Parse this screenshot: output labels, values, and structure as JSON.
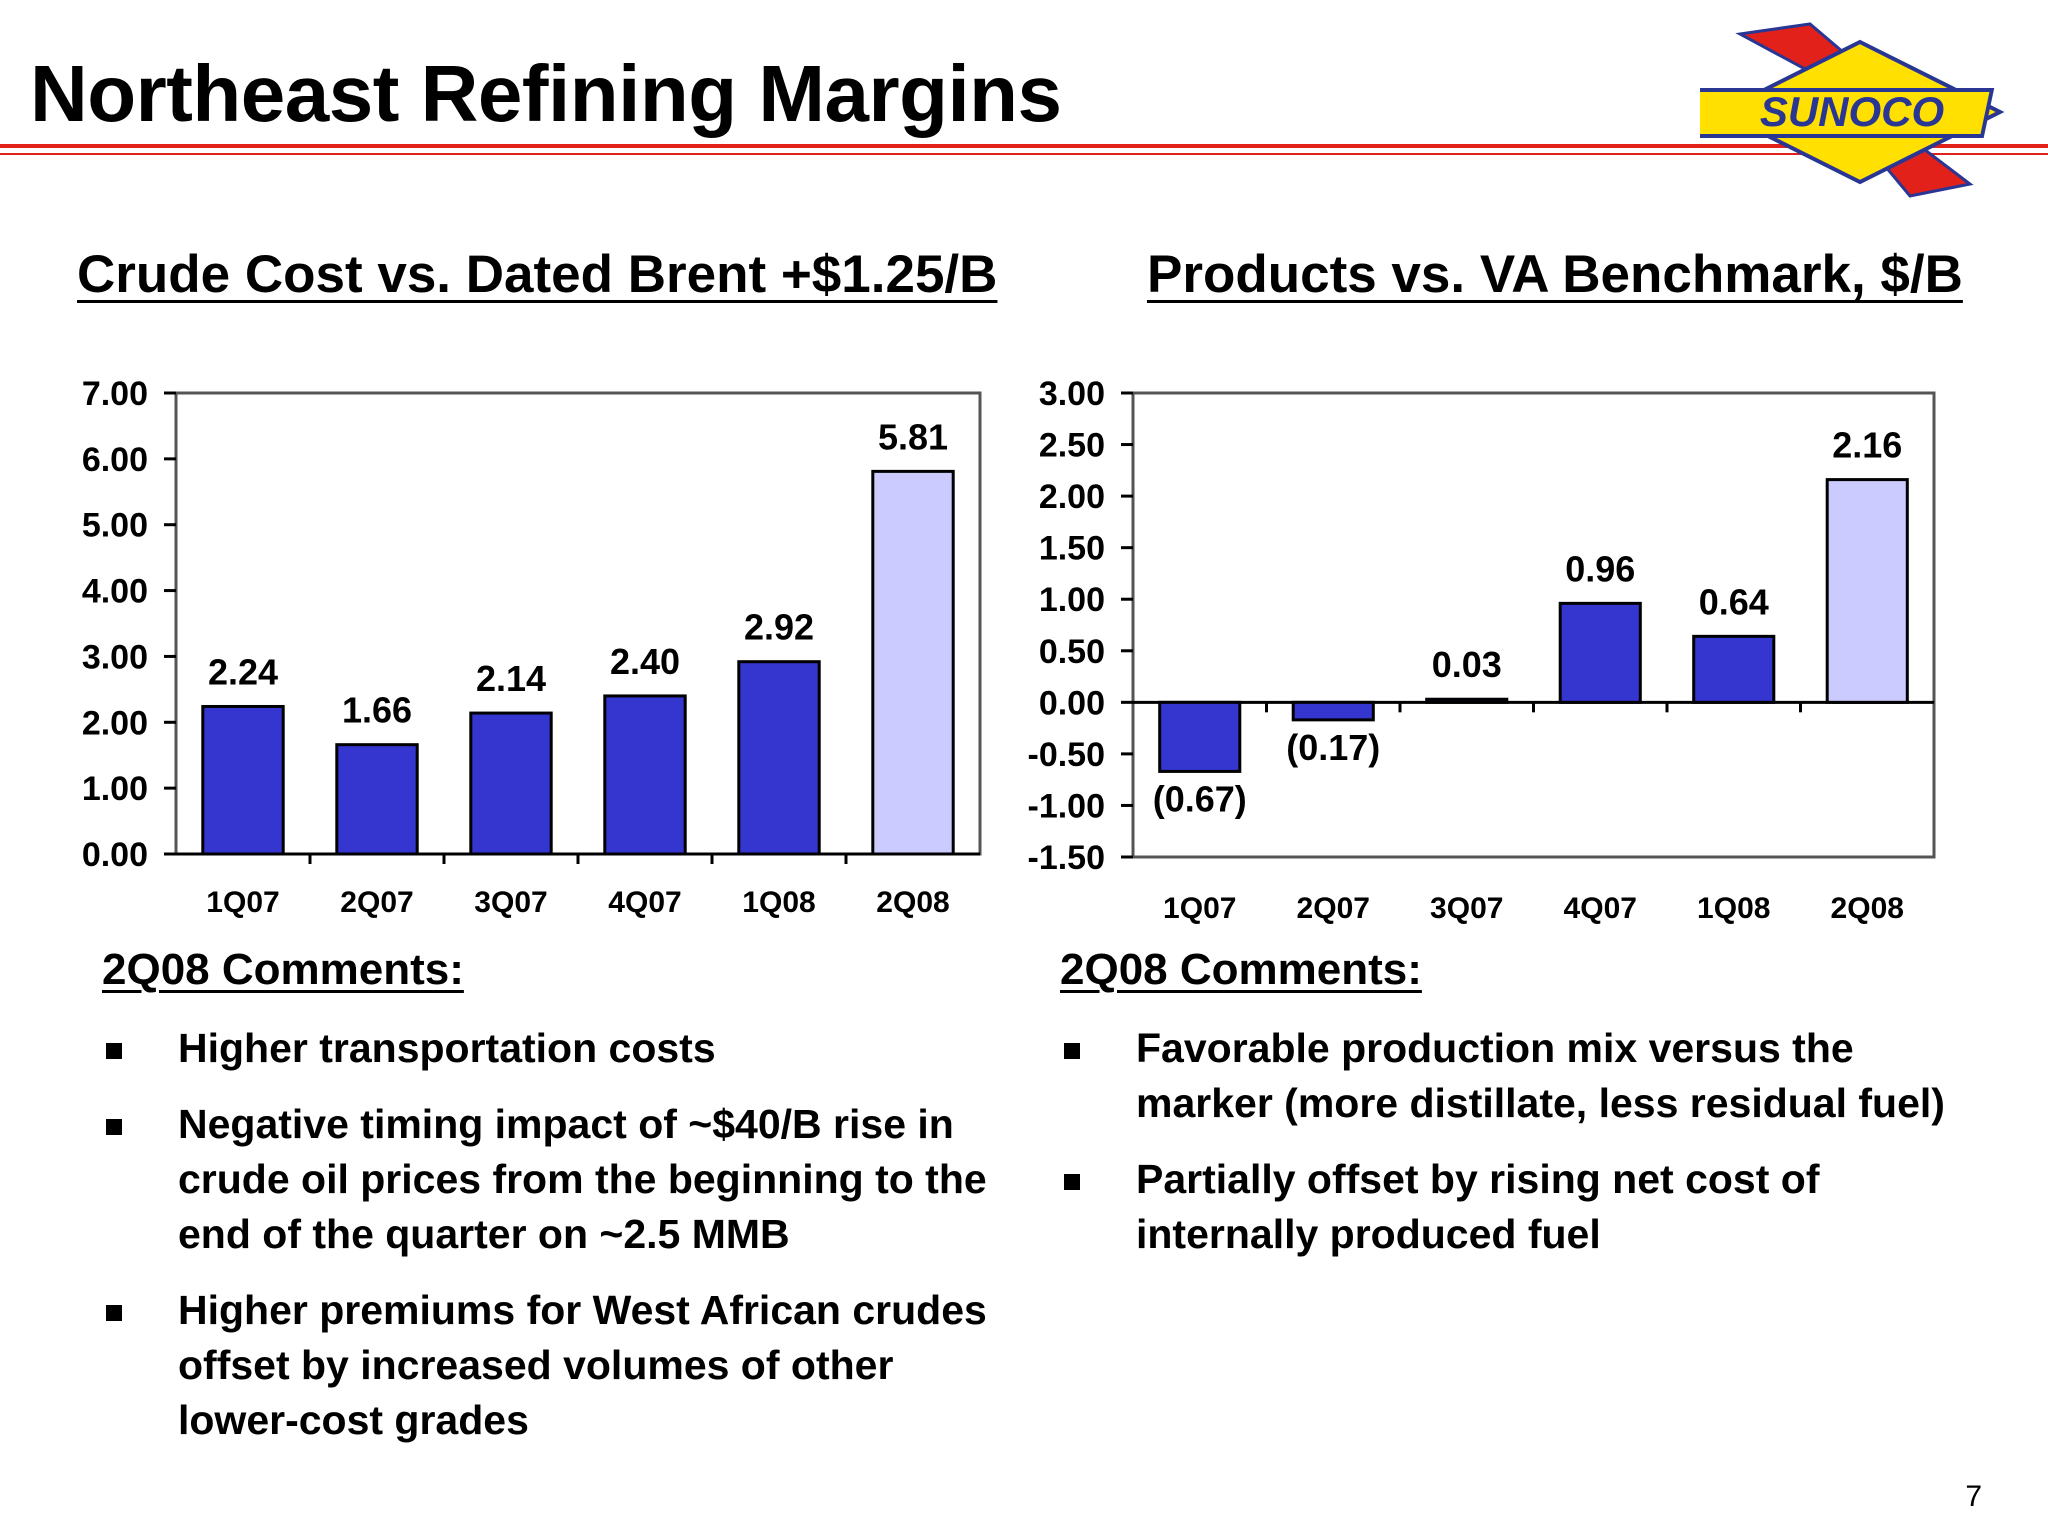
{
  "title": "Northeast Refining Margins",
  "logo_text": "SUNOCO",
  "page_number": "7",
  "colors": {
    "bar": "#3535cf",
    "bar_highlight": "#cccbff",
    "rule": "#e3211b",
    "logo_yellow": "#ffe000",
    "logo_blue": "#2a3694"
  },
  "left": {
    "heading": "Crude Cost vs. Dated Brent +$1.25/B",
    "comments_title": "2Q08 Comments:",
    "bullets": [
      "Higher transportation costs",
      "Negative timing impact of ~$40/B rise in crude oil prices from the beginning to the end of the quarter on ~2.5 MMB",
      "Higher premiums for West African crudes offset by increased volumes of other lower-cost grades"
    ]
  },
  "right": {
    "heading": "Products vs. VA Benchmark, $/B",
    "comments_title": "2Q08 Comments:",
    "bullets": [
      "Favorable production mix versus the marker (more distillate, less residual fuel)",
      "Partially offset by rising net cost of internally produced fuel"
    ]
  },
  "chart_data": [
    {
      "type": "bar",
      "title": "Crude Cost vs. Dated Brent +$1.25/B",
      "categories": [
        "1Q07",
        "2Q07",
        "3Q07",
        "4Q07",
        "1Q08",
        "2Q08"
      ],
      "values": [
        2.24,
        1.66,
        2.14,
        2.4,
        2.92,
        5.81
      ],
      "labels": [
        "2.24",
        "1.66",
        "2.14",
        "2.40",
        "2.92",
        "5.81"
      ],
      "highlight_index": 5,
      "ylim": [
        0,
        7
      ],
      "yticks": [
        "0.00",
        "1.00",
        "2.00",
        "3.00",
        "4.00",
        "5.00",
        "6.00",
        "7.00"
      ],
      "grid": false
    },
    {
      "type": "bar",
      "title": "Products vs. VA Benchmark, $/B",
      "categories": [
        "1Q07",
        "2Q07",
        "3Q07",
        "4Q07",
        "1Q08",
        "2Q08"
      ],
      "values": [
        -0.67,
        -0.17,
        0.03,
        0.96,
        0.64,
        2.16
      ],
      "labels": [
        "(0.67)",
        "(0.17)",
        "0.03",
        "0.96",
        "0.64",
        "2.16"
      ],
      "highlight_index": 5,
      "ylim": [
        -1.5,
        3
      ],
      "yticks": [
        "-1.50",
        "-1.00",
        "-0.50",
        "0.00",
        "0.50",
        "1.00",
        "1.50",
        "2.00",
        "2.50",
        "3.00"
      ],
      "grid": false
    }
  ]
}
